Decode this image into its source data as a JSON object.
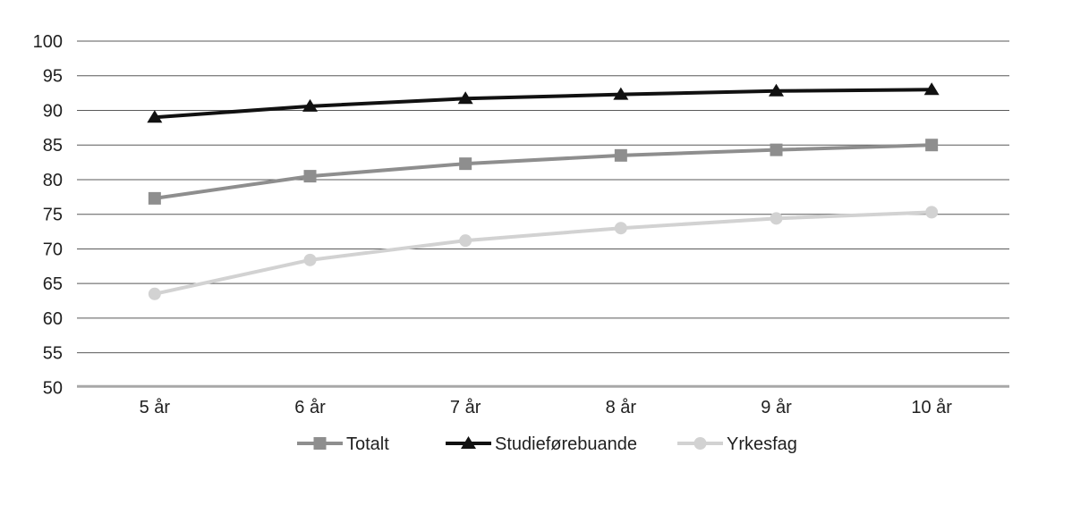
{
  "chart_data": {
    "type": "line",
    "title": "",
    "xlabel": "",
    "ylabel": "",
    "categories": [
      "5 år",
      "6 år",
      "7 år",
      "8 år",
      "9 år",
      "10 år"
    ],
    "series": [
      {
        "name": "Totalt",
        "marker": "square",
        "color": "#8e8e8e",
        "values": [
          77.3,
          80.5,
          82.3,
          83.5,
          84.3,
          85.0
        ]
      },
      {
        "name": "Studieførebuande",
        "marker": "triangle",
        "color": "#111111",
        "values": [
          89.0,
          90.6,
          91.7,
          92.3,
          92.8,
          93.0
        ]
      },
      {
        "name": "Yrkesfag",
        "marker": "circle",
        "color": "#d2d2d2",
        "values": [
          63.5,
          68.4,
          71.2,
          73.0,
          74.4,
          75.3
        ]
      }
    ],
    "ylim": [
      50,
      100
    ],
    "ytick_step": 5,
    "ytick_labels": [
      "100",
      "95",
      "90",
      "85",
      "80",
      "75",
      "70",
      "65",
      "60",
      "55",
      "50"
    ],
    "grid": true,
    "legend_position": "bottom",
    "legend_entries": [
      "Totalt",
      "Studieførebuande",
      "Yrkesfag"
    ]
  },
  "colors": {
    "background": "#ffffff",
    "gridline": "#595959",
    "axisline": "#a8a8a8",
    "text": "#1f1f1f"
  }
}
